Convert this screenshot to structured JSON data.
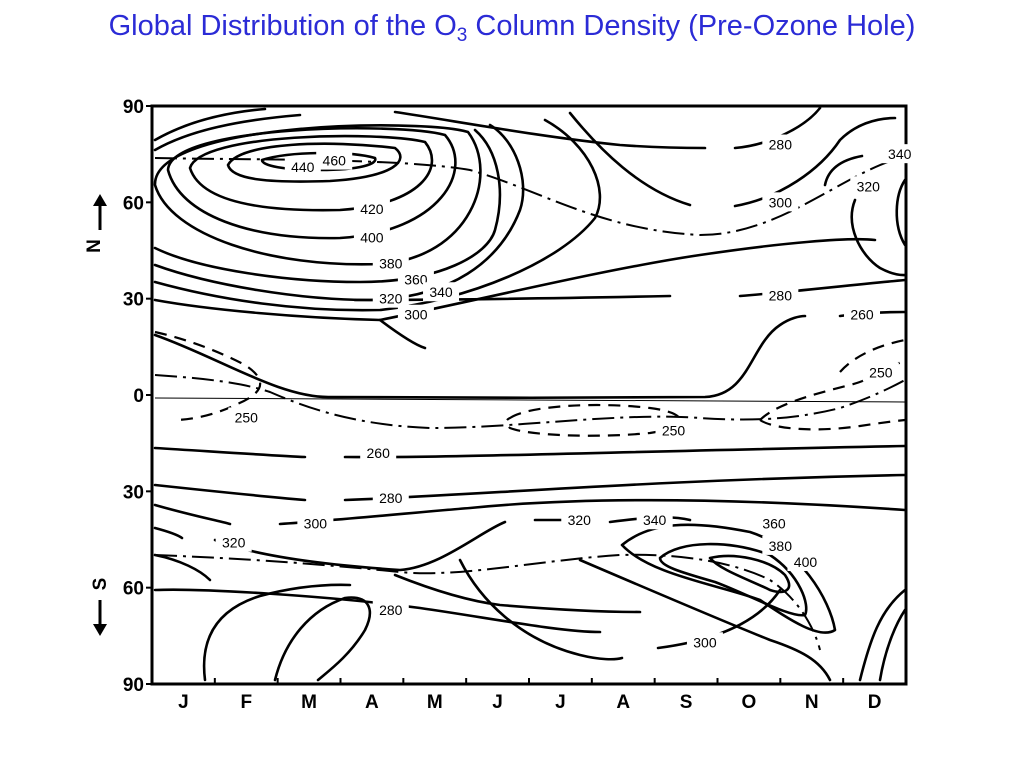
{
  "title": {
    "prefix": "Global Distribution of the O",
    "subscript": "3",
    "suffix": " Column Density (Pre-Ozone Hole)"
  },
  "chart_data": {
    "type": "contour",
    "title": "Global Distribution of the O3 Column Density (Pre-Ozone Hole)",
    "x_categories": [
      "J",
      "F",
      "M",
      "A",
      "M",
      "J",
      "J",
      "A",
      "S",
      "O",
      "N",
      "D"
    ],
    "y_ticks": [
      {
        "label": "90",
        "lat": 90
      },
      {
        "label": "60",
        "lat": 60
      },
      {
        "label": "30",
        "lat": 30
      },
      {
        "label": "0",
        "lat": 0
      },
      {
        "label": "30",
        "lat": -30
      },
      {
        "label": "60",
        "lat": -60
      },
      {
        "label": "90",
        "lat": -90
      }
    ],
    "ylim": [
      -90,
      90
    ],
    "north_label": "N",
    "south_label": "S",
    "contour_labels": [
      {
        "text": "460",
        "month": 2.9,
        "lat": 73
      },
      {
        "text": "440",
        "month": 2.4,
        "lat": 71
      },
      {
        "text": "420",
        "month": 3.5,
        "lat": 58
      },
      {
        "text": "400",
        "month": 3.5,
        "lat": 49
      },
      {
        "text": "380",
        "month": 3.8,
        "lat": 41
      },
      {
        "text": "360",
        "month": 4.2,
        "lat": 36
      },
      {
        "text": "340",
        "month": 4.6,
        "lat": 32
      },
      {
        "text": "320",
        "month": 3.8,
        "lat": 30
      },
      {
        "text": "300",
        "month": 4.2,
        "lat": 25
      },
      {
        "text": "280",
        "month": 10.0,
        "lat": 78
      },
      {
        "text": "300",
        "month": 10.0,
        "lat": 60
      },
      {
        "text": "340",
        "month": 11.9,
        "lat": 75
      },
      {
        "text": "320",
        "month": 11.4,
        "lat": 65
      },
      {
        "text": "280",
        "month": 10.0,
        "lat": 31
      },
      {
        "text": "260",
        "month": 11.3,
        "lat": 25
      },
      {
        "text": "250",
        "month": 11.6,
        "lat": 7
      },
      {
        "text": "250",
        "month": 1.5,
        "lat": -7
      },
      {
        "text": "250",
        "month": 8.3,
        "lat": -11
      },
      {
        "text": "260",
        "month": 3.6,
        "lat": -18
      },
      {
        "text": "280",
        "month": 3.8,
        "lat": -32
      },
      {
        "text": "300",
        "month": 2.6,
        "lat": -40
      },
      {
        "text": "320",
        "month": 1.3,
        "lat": -46
      },
      {
        "text": "320",
        "month": 6.8,
        "lat": -39
      },
      {
        "text": "340",
        "month": 8.0,
        "lat": -39
      },
      {
        "text": "360",
        "month": 9.9,
        "lat": -40
      },
      {
        "text": "380",
        "month": 10.0,
        "lat": -47
      },
      {
        "text": "400",
        "month": 10.4,
        "lat": -52
      },
      {
        "text": "280",
        "month": 3.8,
        "lat": -67
      },
      {
        "text": "300",
        "month": 8.8,
        "lat": -77
      }
    ]
  }
}
